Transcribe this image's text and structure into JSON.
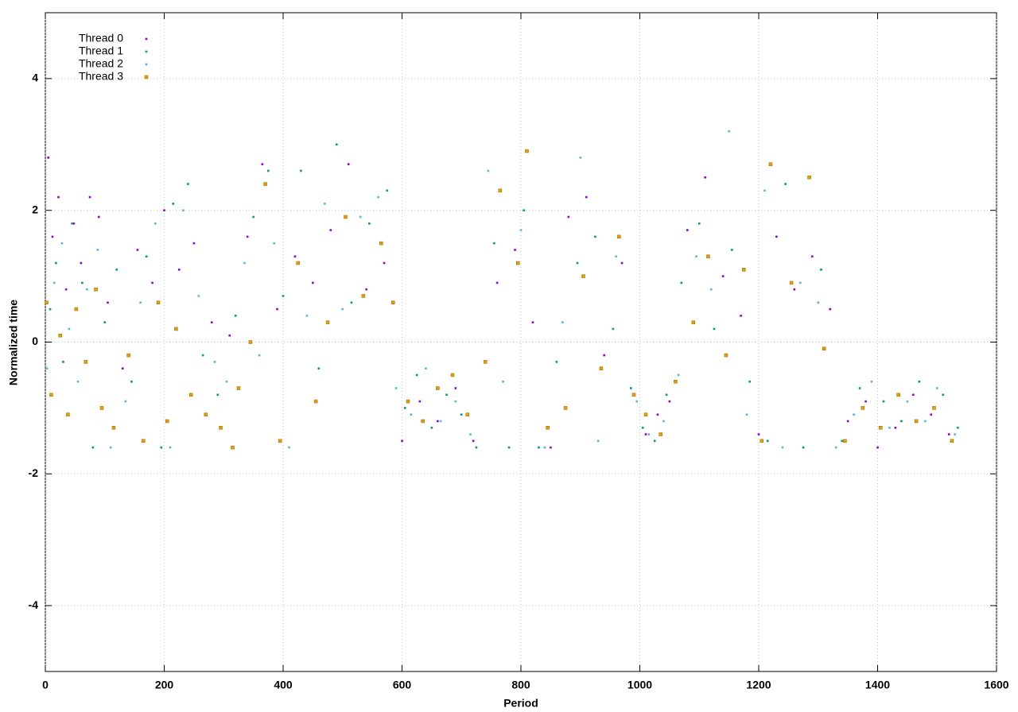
{
  "chart_data": {
    "type": "scatter",
    "xlabel": "Period",
    "ylabel": "Normalized time",
    "xlim": [
      0,
      1600
    ],
    "ylim": [
      -5,
      5
    ],
    "xticks": [
      0,
      200,
      400,
      600,
      800,
      1000,
      1200,
      1400,
      1600
    ],
    "yticks": [
      -4,
      -2,
      0,
      2,
      4
    ],
    "grid": true,
    "legend": "top-left",
    "series": [
      {
        "name": "Thread 0",
        "color": "#9400d3",
        "marker": "dot",
        "x": [
          5,
          12,
          22,
          35,
          48,
          60,
          75,
          90,
          105,
          130,
          155,
          180,
          200,
          225,
          250,
          280,
          310,
          340,
          365,
          390,
          420,
          450,
          480,
          510,
          540,
          570,
          600,
          630,
          660,
          690,
          720,
          760,
          790,
          820,
          850,
          880,
          910,
          940,
          970,
          1010,
          1030,
          1050,
          1080,
          1110,
          1140,
          1170,
          1200,
          1230,
          1260,
          1290,
          1320,
          1350,
          1380,
          1400,
          1430,
          1460,
          1490,
          1520
        ],
        "values": [
          2.8,
          1.6,
          2.2,
          0.8,
          1.8,
          1.2,
          2.2,
          1.9,
          0.6,
          -0.4,
          1.4,
          0.9,
          2.0,
          1.1,
          1.5,
          0.3,
          0.1,
          1.6,
          2.7,
          0.5,
          1.3,
          0.9,
          1.7,
          2.7,
          0.8,
          1.2,
          -1.5,
          -0.9,
          -1.2,
          -0.7,
          -1.5,
          0.9,
          1.4,
          0.3,
          -1.6,
          1.9,
          2.2,
          -0.2,
          1.2,
          -1.4,
          -1.1,
          -0.9,
          1.7,
          2.5,
          1.0,
          0.4,
          -1.4,
          1.6,
          0.8,
          1.3,
          0.5,
          -1.2,
          -0.9,
          -1.6,
          -1.3,
          -0.8,
          -1.1,
          -1.4
        ]
      },
      {
        "name": "Thread 1",
        "color": "#009e73",
        "marker": "dot",
        "x": [
          8,
          18,
          30,
          45,
          62,
          80,
          100,
          120,
          145,
          170,
          195,
          215,
          240,
          265,
          290,
          320,
          350,
          375,
          400,
          430,
          460,
          490,
          515,
          545,
          575,
          605,
          625,
          650,
          675,
          700,
          725,
          755,
          780,
          805,
          830,
          860,
          895,
          925,
          955,
          985,
          1005,
          1025,
          1045,
          1070,
          1100,
          1125,
          1155,
          1185,
          1215,
          1245,
          1275,
          1305,
          1340,
          1370,
          1410,
          1440,
          1470,
          1510,
          1535
        ],
        "values": [
          0.5,
          1.2,
          -0.3,
          1.8,
          0.9,
          -1.6,
          0.3,
          1.1,
          -0.6,
          1.3,
          -1.6,
          2.1,
          2.4,
          -0.2,
          -0.8,
          0.4,
          1.9,
          2.6,
          0.7,
          2.6,
          -0.4,
          3.0,
          0.6,
          1.8,
          2.3,
          -1.0,
          -0.5,
          -1.3,
          -0.8,
          -1.1,
          -1.6,
          1.5,
          -1.6,
          2.0,
          -1.6,
          -0.3,
          1.2,
          1.6,
          0.2,
          -0.7,
          -1.3,
          -1.5,
          -0.8,
          0.9,
          1.8,
          0.2,
          1.4,
          -0.6,
          -1.5,
          2.4,
          -1.6,
          1.1,
          -1.5,
          -0.7,
          -0.9,
          -1.2,
          -0.6,
          -0.8,
          -1.3
        ]
      },
      {
        "name": "Thread 2",
        "color": "#56b4e9",
        "marker": "dot",
        "x": [
          3,
          15,
          28,
          40,
          55,
          70,
          88,
          110,
          135,
          160,
          185,
          210,
          232,
          258,
          285,
          305,
          335,
          360,
          385,
          410,
          440,
          470,
          500,
          530,
          560,
          590,
          615,
          640,
          665,
          690,
          715,
          745,
          770,
          800,
          840,
          870,
          900,
          930,
          960,
          995,
          1015,
          1040,
          1065,
          1095,
          1120,
          1150,
          1180,
          1210,
          1240,
          1270,
          1300,
          1330,
          1360,
          1390,
          1420,
          1450,
          1480,
          1500,
          1530
        ],
        "values": [
          -0.4,
          0.9,
          1.5,
          0.2,
          -0.6,
          0.8,
          1.4,
          -1.6,
          -0.9,
          0.6,
          1.8,
          -1.6,
          2.0,
          0.7,
          -0.3,
          -0.6,
          1.2,
          -0.2,
          1.5,
          -1.6,
          0.4,
          2.1,
          0.5,
          1.9,
          2.2,
          -0.7,
          -1.1,
          -0.4,
          -1.2,
          -0.9,
          -1.4,
          2.6,
          -0.6,
          1.7,
          -1.6,
          0.3,
          2.8,
          -1.5,
          1.3,
          -0.9,
          -1.4,
          -1.2,
          -0.5,
          1.3,
          0.8,
          3.2,
          -1.1,
          2.3,
          -1.6,
          0.9,
          0.6,
          -1.6,
          -1.1,
          -0.6,
          -1.3,
          -0.9,
          -1.2,
          -0.7,
          -1.4
        ]
      },
      {
        "name": "Thread 3",
        "color": "#e69f00",
        "marker": "square",
        "x": [
          2,
          10,
          25,
          38,
          52,
          68,
          85,
          95,
          115,
          140,
          165,
          190,
          205,
          220,
          245,
          270,
          295,
          315,
          325,
          345,
          370,
          395,
          425,
          455,
          475,
          505,
          535,
          565,
          585,
          610,
          635,
          660,
          685,
          710,
          740,
          765,
          795,
          810,
          845,
          875,
          905,
          935,
          965,
          990,
          1010,
          1035,
          1060,
          1090,
          1115,
          1145,
          1175,
          1205,
          1220,
          1255,
          1285,
          1310,
          1345,
          1375,
          1405,
          1435,
          1465,
          1495,
          1525
        ],
        "values": [
          0.6,
          -0.8,
          0.1,
          -1.1,
          0.5,
          -0.3,
          0.8,
          -1.0,
          -1.3,
          -0.2,
          -1.5,
          0.6,
          -1.2,
          0.2,
          -0.8,
          -1.1,
          -1.3,
          -1.6,
          -0.7,
          0.0,
          2.4,
          -1.5,
          1.2,
          -0.9,
          0.3,
          1.9,
          0.7,
          1.5,
          0.6,
          -0.9,
          -1.2,
          -0.7,
          -0.5,
          -1.1,
          -0.3,
          2.3,
          1.2,
          2.9,
          -1.3,
          -1.0,
          1.0,
          -0.4,
          1.6,
          -0.8,
          -1.1,
          -1.4,
          -0.6,
          0.3,
          1.3,
          -0.2,
          1.1,
          -1.5,
          2.7,
          0.9,
          2.5,
          -0.1,
          -1.5,
          -1.0,
          -1.3,
          -0.8,
          -1.2,
          -1.0,
          -1.5
        ]
      }
    ]
  }
}
